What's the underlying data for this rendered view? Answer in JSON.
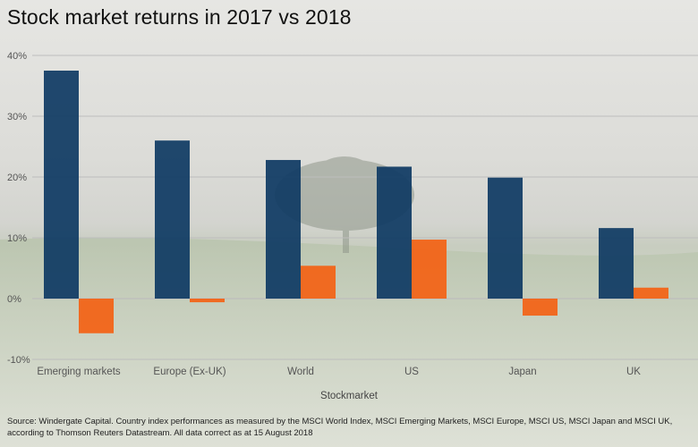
{
  "title": "Stock market returns in 2017 vs 2018",
  "source": "Source: Windergate Capital. Country index performances as measured by the MSCI World Index, MSCI Emerging Markets, MSCI Europe, MSCI US, MSCI Japan and MSCI UK, according to Thomson Reuters Datastream. All data correct as at 15 August 2018",
  "colors": {
    "series_2017": "#0e3a63",
    "series_2018": "#f26418",
    "grid": "#bdbdbd"
  },
  "chart_data": {
    "type": "bar",
    "title": "Stock market returns in 2017 vs 2018",
    "xlabel": "Stockmarket",
    "ylabel": "",
    "categories": [
      "Emerging markets",
      "Europe (Ex-UK)",
      "World",
      "US",
      "Japan",
      "UK"
    ],
    "series": [
      {
        "name": "",
        "values": [
          37.5,
          26.0,
          22.8,
          21.7,
          19.9,
          11.6
        ]
      },
      {
        "name": "",
        "values": [
          -5.7,
          -0.6,
          5.4,
          9.7,
          -2.8,
          1.8
        ]
      }
    ],
    "yticks": [
      "40%",
      "30%",
      "20%",
      "10%",
      "0%",
      "-10%"
    ],
    "ytick_values": [
      40,
      30,
      20,
      10,
      0,
      -10
    ],
    "ylim": [
      -10,
      40
    ],
    "grid": true,
    "legend": "none"
  }
}
